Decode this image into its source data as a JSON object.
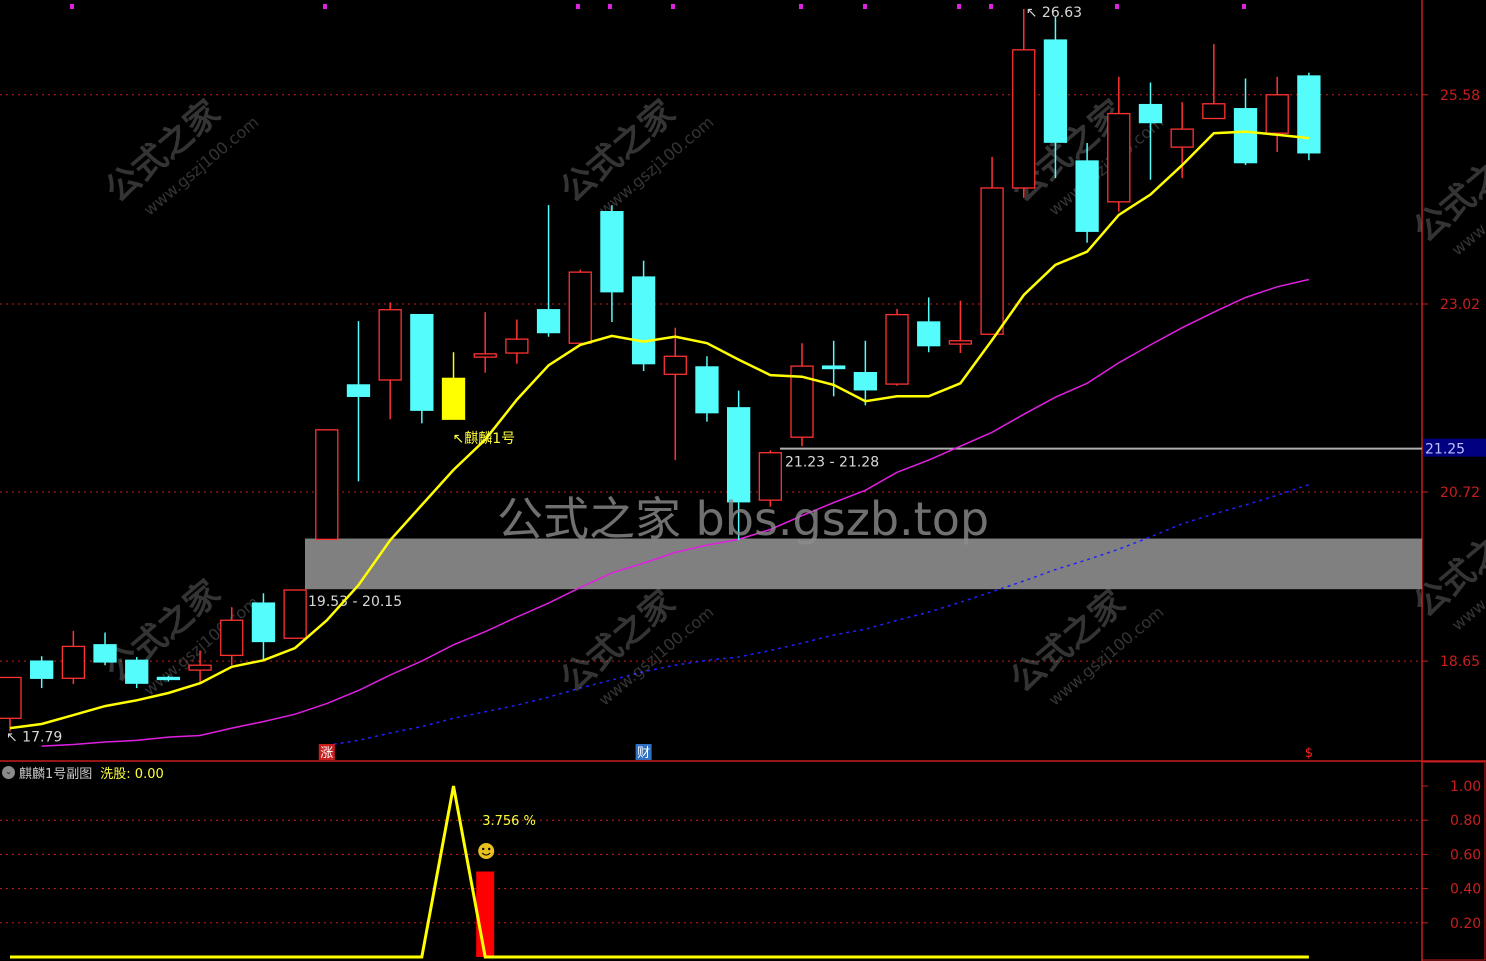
{
  "chart_data": [
    {
      "type": "candlestick",
      "ylim": [
        17.44,
        26.74
      ],
      "y_ticks": [
        "25.58",
        "23.02",
        "20.72",
        "18.65"
      ],
      "grid": true,
      "colors": {
        "up": "#ff3232",
        "down": "#54fcfc",
        "signal": "#ffff00",
        "ma_short": "#ffff00",
        "ma_mid": "#e020e0",
        "ma_long": "#2020ff",
        "axis": "#c81e1e"
      },
      "candles": [
        {
          "o": 17.95,
          "h": 18.45,
          "l": 17.79,
          "c": 18.45
        },
        {
          "o": 18.65,
          "h": 18.71,
          "l": 18.32,
          "c": 18.44
        },
        {
          "o": 18.44,
          "h": 19.02,
          "l": 18.37,
          "c": 18.83
        },
        {
          "o": 18.85,
          "h": 19.0,
          "l": 18.6,
          "c": 18.64
        },
        {
          "o": 18.66,
          "h": 18.7,
          "l": 18.32,
          "c": 18.38
        },
        {
          "o": 18.45,
          "h": 18.47,
          "l": 18.4,
          "c": 18.43
        },
        {
          "o": 18.54,
          "h": 18.78,
          "l": 18.39,
          "c": 18.6
        },
        {
          "o": 18.72,
          "h": 19.31,
          "l": 18.6,
          "c": 19.15
        },
        {
          "o": 19.36,
          "h": 19.48,
          "l": 18.66,
          "c": 18.89
        },
        {
          "o": 18.93,
          "h": 19.52,
          "l": 18.93,
          "c": 19.52
        },
        {
          "o": 20.14,
          "h": 21.48,
          "l": 20.14,
          "c": 21.48
        },
        {
          "o": 22.03,
          "h": 22.81,
          "l": 20.85,
          "c": 21.89
        },
        {
          "o": 22.09,
          "h": 23.04,
          "l": 21.61,
          "c": 22.95
        },
        {
          "o": 22.89,
          "h": 22.89,
          "l": 21.56,
          "c": 21.72
        },
        {
          "o": 22.11,
          "h": 22.43,
          "l": 21.61,
          "c": 21.61,
          "color": "signal"
        },
        {
          "o": 22.37,
          "h": 22.92,
          "l": 22.18,
          "c": 22.41
        },
        {
          "o": 22.42,
          "h": 22.83,
          "l": 22.29,
          "c": 22.59
        },
        {
          "o": 22.95,
          "h": 24.23,
          "l": 22.62,
          "c": 22.67
        },
        {
          "o": 22.54,
          "h": 23.44,
          "l": 22.54,
          "c": 23.41
        },
        {
          "o": 24.15,
          "h": 24.23,
          "l": 22.8,
          "c": 23.17
        },
        {
          "o": 23.35,
          "h": 23.55,
          "l": 22.2,
          "c": 22.29
        },
        {
          "o": 22.16,
          "h": 22.73,
          "l": 21.11,
          "c": 22.38
        },
        {
          "o": 22.25,
          "h": 22.38,
          "l": 21.58,
          "c": 21.69
        },
        {
          "o": 21.75,
          "h": 21.96,
          "l": 20.13,
          "c": 20.6
        },
        {
          "o": 20.62,
          "h": 21.23,
          "l": 20.54,
          "c": 21.2
        },
        {
          "o": 21.39,
          "h": 22.54,
          "l": 21.28,
          "c": 22.26
        },
        {
          "o": 22.26,
          "h": 22.57,
          "l": 21.89,
          "c": 22.23
        },
        {
          "o": 22.18,
          "h": 22.57,
          "l": 21.78,
          "c": 21.97
        },
        {
          "o": 22.04,
          "h": 22.96,
          "l": 22.02,
          "c": 22.89
        },
        {
          "o": 22.8,
          "h": 23.1,
          "l": 22.43,
          "c": 22.51
        },
        {
          "o": 22.53,
          "h": 23.06,
          "l": 22.42,
          "c": 22.57
        },
        {
          "o": 22.65,
          "h": 24.82,
          "l": 22.65,
          "c": 24.44
        },
        {
          "o": 24.44,
          "h": 26.63,
          "l": 24.32,
          "c": 26.13
        },
        {
          "o": 26.25,
          "h": 26.53,
          "l": 24.56,
          "c": 25.0
        },
        {
          "o": 24.77,
          "h": 24.99,
          "l": 23.77,
          "c": 23.91
        },
        {
          "o": 24.27,
          "h": 25.8,
          "l": 24.15,
          "c": 25.35
        },
        {
          "o": 25.46,
          "h": 25.73,
          "l": 24.54,
          "c": 25.24
        },
        {
          "o": 24.94,
          "h": 25.49,
          "l": 24.56,
          "c": 25.16
        },
        {
          "o": 25.29,
          "h": 26.2,
          "l": 25.29,
          "c": 25.47
        },
        {
          "o": 25.41,
          "h": 25.78,
          "l": 24.72,
          "c": 24.75
        },
        {
          "o": 25.11,
          "h": 25.8,
          "l": 24.88,
          "c": 25.58
        },
        {
          "o": 25.81,
          "h": 25.85,
          "l": 24.78,
          "c": 24.87
        }
      ],
      "ma_short": [
        17.83,
        17.88,
        17.99,
        18.1,
        18.17,
        18.26,
        18.38,
        18.58,
        18.66,
        18.81,
        19.15,
        19.58,
        20.13,
        20.56,
        20.99,
        21.36,
        21.85,
        22.27,
        22.52,
        22.63,
        22.56,
        22.62,
        22.54,
        22.34,
        22.15,
        22.13,
        22.03,
        21.83,
        21.89,
        21.89,
        22.05,
        22.58,
        23.13,
        23.5,
        23.66,
        24.11,
        24.36,
        24.72,
        25.11,
        25.13,
        25.09,
        25.05
      ],
      "ma_mid": [
        null,
        17.61,
        17.63,
        17.66,
        17.68,
        17.72,
        17.74,
        17.83,
        17.91,
        18.0,
        18.13,
        18.29,
        18.48,
        18.65,
        18.85,
        19.01,
        19.19,
        19.36,
        19.55,
        19.73,
        19.85,
        19.98,
        20.07,
        20.14,
        20.26,
        20.43,
        20.59,
        20.74,
        20.96,
        21.11,
        21.28,
        21.45,
        21.67,
        21.88,
        22.05,
        22.3,
        22.52,
        22.73,
        22.92,
        23.1,
        23.23,
        23.32
      ],
      "ma_long": [
        null,
        null,
        null,
        null,
        null,
        null,
        null,
        null,
        null,
        null,
        17.62,
        17.68,
        17.77,
        17.85,
        17.95,
        18.03,
        18.11,
        18.21,
        18.32,
        18.42,
        18.52,
        18.6,
        18.66,
        18.7,
        18.78,
        18.87,
        18.97,
        19.04,
        19.15,
        19.25,
        19.37,
        19.5,
        19.63,
        19.77,
        19.89,
        20.02,
        20.17,
        20.33,
        20.45,
        20.56,
        20.68,
        20.81
      ],
      "high_label": "26.63",
      "low_label": "17.79",
      "signal_label": "麒麟1号",
      "support_zone": {
        "low": 19.53,
        "high": 20.15,
        "label": "19.53 - 20.15"
      },
      "level_line": {
        "value": 21.25,
        "label": "21.23 - 21.28"
      },
      "current_price_tag": "21.25",
      "markers": [
        {
          "index": 10,
          "text": "涨",
          "color": "#c81e1e"
        },
        {
          "index": 20,
          "text": "财",
          "color": "#3070c0"
        },
        {
          "index": 41,
          "text": "$",
          "color": "#ff2020"
        }
      ]
    },
    {
      "type": "line",
      "title": "麒麟1号副图",
      "indicator": "洗股: 0.00",
      "ylim": [
        0,
        1.0
      ],
      "y_ticks": [
        "1.00",
        "0.80",
        "0.60",
        "0.40",
        "0.20"
      ],
      "line_color": "#ffff00",
      "line": [
        0,
        0,
        0,
        0,
        0,
        0,
        0,
        0,
        0,
        0,
        0,
        0,
        0,
        0,
        1.0,
        0,
        0,
        0,
        0,
        0,
        0,
        0,
        0,
        0,
        0,
        0,
        0,
        0,
        0,
        0,
        0,
        0,
        0,
        0,
        0,
        0,
        0,
        0,
        0,
        0,
        0,
        0
      ],
      "bar": {
        "index": 15,
        "value": 0.5,
        "color": "#ff0000"
      },
      "annotation": "3.756 %",
      "annotation_icon": "smiley-icon"
    }
  ],
  "watermarks": {
    "small_title": "公式之家",
    "small_url": "www.gszj100.com",
    "big": "公式之家 bbs.gszb.top"
  }
}
